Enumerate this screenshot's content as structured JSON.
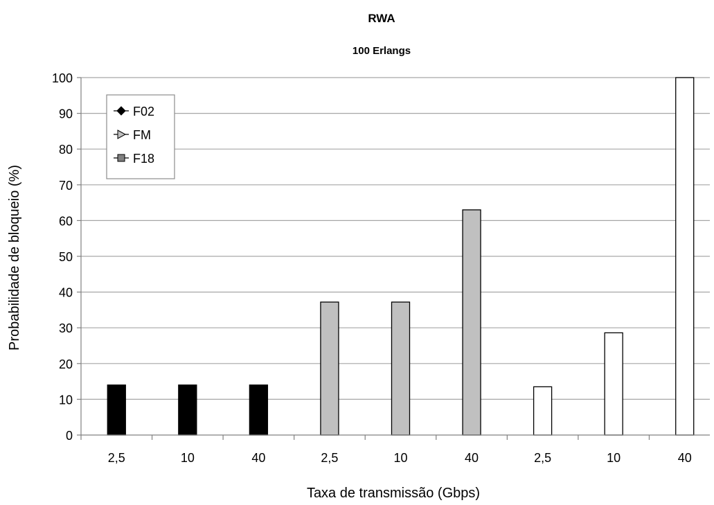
{
  "chart_data": {
    "type": "bar",
    "title": "RWA",
    "subtitle": "100 Erlangs",
    "xlabel": "Taxa de transmissão (Gbps)",
    "ylabel": "Probabilidade de bloqueio (%)",
    "ylim": [
      0,
      100
    ],
    "yticks": [
      0,
      10,
      20,
      30,
      40,
      50,
      60,
      70,
      80,
      90,
      100
    ],
    "grid": true,
    "legend_position": "top-left",
    "categories": [
      "2,5",
      "10",
      "40",
      "2,5",
      "10",
      "40",
      "2,5",
      "10",
      "40"
    ],
    "series": [
      {
        "name": "F02",
        "marker": "diamond",
        "color": "#000000",
        "values": [
          14,
          14,
          14,
          null,
          null,
          null,
          null,
          null,
          null
        ]
      },
      {
        "name": "FM",
        "marker": "triangle-right",
        "color": "#c0c0c0",
        "values": [
          null,
          null,
          null,
          37.2,
          37.2,
          63,
          null,
          null,
          null
        ]
      },
      {
        "name": "F18",
        "marker": "square",
        "color": "#ffffff",
        "values": [
          null,
          null,
          null,
          null,
          null,
          null,
          13.5,
          28.6,
          100
        ]
      }
    ]
  }
}
